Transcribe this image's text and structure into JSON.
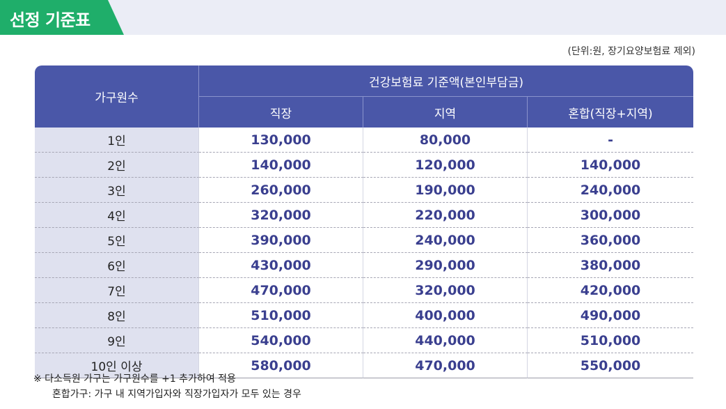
{
  "title": "선정 기준표",
  "unit_note": "(단위:원, 장기요양보험료 제외)",
  "table": {
    "col_household": "가구원수",
    "col_group": "건강보험료 기준액(본인부담금)",
    "sub_cols": [
      "직장",
      "지역",
      "혼합(직장+지역)"
    ],
    "rows": [
      {
        "count": "1인",
        "work": "130,000",
        "region": "80,000",
        "mixed": "-"
      },
      {
        "count": "2인",
        "work": "140,000",
        "region": "120,000",
        "mixed": "140,000"
      },
      {
        "count": "3인",
        "work": "260,000",
        "region": "190,000",
        "mixed": "240,000"
      },
      {
        "count": "4인",
        "work": "320,000",
        "region": "220,000",
        "mixed": "300,000"
      },
      {
        "count": "5인",
        "work": "390,000",
        "region": "240,000",
        "mixed": "360,000"
      },
      {
        "count": "6인",
        "work": "430,000",
        "region": "290,000",
        "mixed": "380,000"
      },
      {
        "count": "7인",
        "work": "470,000",
        "region": "320,000",
        "mixed": "420,000"
      },
      {
        "count": "8인",
        "work": "510,000",
        "region": "400,000",
        "mixed": "490,000"
      },
      {
        "count": "9인",
        "work": "540,000",
        "region": "440,000",
        "mixed": "510,000"
      },
      {
        "count": "10인 이상",
        "work": "580,000",
        "region": "470,000",
        "mixed": "550,000"
      }
    ]
  },
  "notes": {
    "line1": "※  다소득원 가구는 가구원수를 +1 추가하여 적용",
    "line2": "혼합가구: 가구 내 지역가입자와 직장가입자가 모두 있는 경우"
  },
  "colors": {
    "title_green": "#1fae6a",
    "header_blue": "#4a57a8",
    "value_navy": "#3a3f8f"
  }
}
